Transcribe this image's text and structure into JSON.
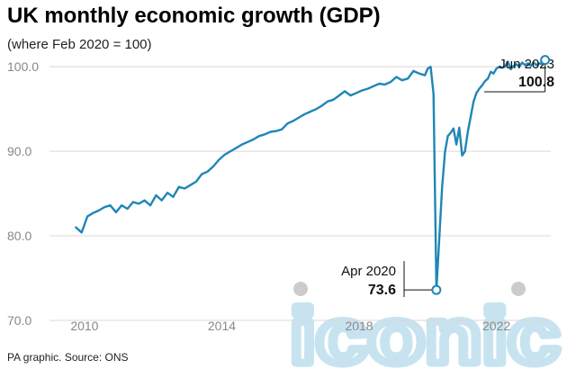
{
  "header": {
    "title": "UK monthly economic growth (GDP)",
    "subtitle": "(where Feb 2020 = 100)"
  },
  "footer": {
    "source": "PA graphic. Source: ONS"
  },
  "watermark": {
    "text": "iconic",
    "color": "#c7e3f0"
  },
  "colors": {
    "line": "#1f86b6",
    "grid": "#d8d8d8",
    "tick_label": "#888888",
    "annotation": "#111111"
  },
  "chart_data": {
    "type": "line",
    "title": "UK monthly economic growth (GDP)",
    "subtitle": "(where Feb 2020 = 100)",
    "xlabel": "",
    "ylabel": "",
    "xlim": [
      "2009-08",
      "2023-08"
    ],
    "ylim": [
      70,
      103
    ],
    "x_ticks": [
      "2010",
      "2014",
      "2018",
      "2022"
    ],
    "y_ticks": [
      70.0,
      80.0,
      90.0,
      100.0
    ],
    "y_tick_labels": [
      "70.0",
      "80.0",
      "90.0",
      "100.0"
    ],
    "grid": "horizontal",
    "legend": "none",
    "series": [
      {
        "x": [
          "2009-10",
          "2009-12",
          "2010-02",
          "2010-04",
          "2010-06",
          "2010-08",
          "2010-10",
          "2010-12",
          "2011-02",
          "2011-04",
          "2011-06",
          "2011-08",
          "2011-10",
          "2011-12",
          "2012-02",
          "2012-04",
          "2012-06",
          "2012-08",
          "2012-10",
          "2012-12",
          "2013-02",
          "2013-04",
          "2013-06",
          "2013-08",
          "2013-10",
          "2013-12",
          "2014-02",
          "2014-04",
          "2014-06",
          "2014-08",
          "2014-10",
          "2014-12",
          "2015-02",
          "2015-04",
          "2015-06",
          "2015-08",
          "2015-10",
          "2015-12",
          "2016-02",
          "2016-04",
          "2016-06",
          "2016-08",
          "2016-10",
          "2016-12",
          "2017-02",
          "2017-04",
          "2017-06",
          "2017-08",
          "2017-10",
          "2017-12",
          "2018-02",
          "2018-04",
          "2018-06",
          "2018-08",
          "2018-10",
          "2018-12",
          "2019-02",
          "2019-04",
          "2019-06",
          "2019-08",
          "2019-10",
          "2019-12",
          "2020-01",
          "2020-02",
          "2020-03",
          "2020-04",
          "2020-05",
          "2020-06",
          "2020-07",
          "2020-08",
          "2020-09",
          "2020-10",
          "2020-11",
          "2020-12",
          "2021-01",
          "2021-02",
          "2021-03",
          "2021-04",
          "2021-05",
          "2021-06",
          "2021-07",
          "2021-08",
          "2021-09",
          "2021-10",
          "2021-11",
          "2021-12",
          "2022-01",
          "2022-02",
          "2022-03",
          "2022-04",
          "2022-05",
          "2022-06",
          "2022-07",
          "2022-08",
          "2022-09",
          "2022-10",
          "2022-11",
          "2022-12",
          "2023-01",
          "2023-02",
          "2023-03",
          "2023-04",
          "2023-05",
          "2023-06"
        ],
        "values": [
          81.0,
          80.4,
          82.3,
          82.7,
          83.0,
          83.4,
          83.6,
          82.8,
          83.6,
          83.2,
          84.0,
          83.8,
          84.2,
          83.6,
          84.8,
          84.2,
          85.1,
          84.6,
          85.8,
          85.6,
          86.0,
          86.4,
          87.3,
          87.6,
          88.2,
          89.0,
          89.6,
          90.0,
          90.4,
          90.8,
          91.1,
          91.4,
          91.8,
          92.0,
          92.3,
          92.4,
          92.6,
          93.3,
          93.6,
          94.0,
          94.4,
          94.7,
          95.0,
          95.4,
          95.9,
          96.1,
          96.6,
          97.1,
          96.6,
          96.9,
          97.2,
          97.4,
          97.7,
          98.0,
          97.9,
          98.2,
          98.8,
          98.4,
          98.6,
          99.5,
          99.2,
          99.0,
          99.8,
          100.0,
          96.8,
          73.6,
          79.5,
          85.7,
          89.9,
          91.8,
          92.2,
          92.7,
          90.8,
          92.8,
          89.5,
          90.0,
          92.3,
          94.1,
          95.9,
          96.9,
          97.4,
          97.8,
          98.3,
          98.6,
          99.4,
          99.2,
          99.8,
          100.0,
          99.9,
          100.0,
          100.6,
          99.7,
          100.1,
          100.3,
          100.0,
          100.5,
          100.2,
          100.4,
          100.1,
          100.5,
          100.2,
          100.4,
          100.3,
          100.8
        ]
      }
    ],
    "annotations": [
      {
        "label": "Jun 2023",
        "value_text": "100.8",
        "x": "2023-06",
        "y": 100.8
      },
      {
        "label": "Apr 2020",
        "value_text": "73.6",
        "x": "2020-04",
        "y": 73.6
      }
    ]
  }
}
